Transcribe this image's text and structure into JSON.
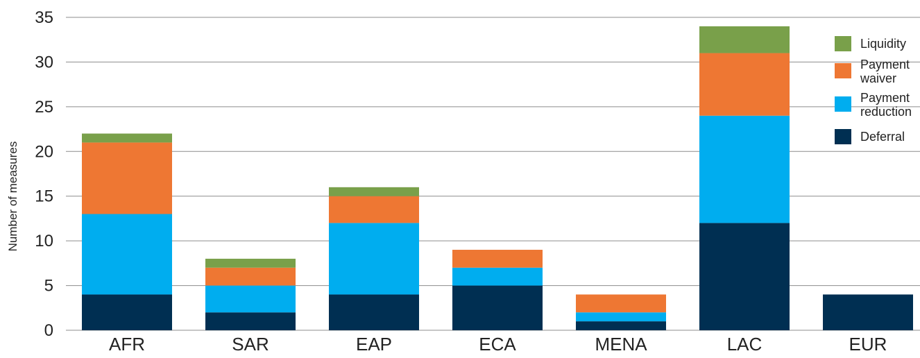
{
  "chart_data": {
    "type": "bar",
    "stacked": true,
    "categories": [
      "AFR",
      "SAR",
      "EAP",
      "ECA",
      "MENA",
      "LAC",
      "EUR"
    ],
    "series": [
      {
        "name": "Deferral",
        "values": [
          4,
          2,
          4,
          5,
          1,
          12,
          4
        ],
        "color": "#002f52"
      },
      {
        "name": "Payment reduction",
        "values": [
          9,
          3,
          8,
          2,
          1,
          12,
          0
        ],
        "color": "#00adef"
      },
      {
        "name": "Payment waiver",
        "values": [
          8,
          2,
          3,
          2,
          2,
          7,
          0
        ],
        "color": "#ee7733"
      },
      {
        "name": "Liquidity",
        "values": [
          1,
          1,
          1,
          0,
          0,
          3,
          0
        ],
        "color": "#79a04a"
      }
    ],
    "legend_order": [
      "Liquidity",
      "Payment waiver",
      "Payment reduction",
      "Deferral"
    ],
    "legend_labels": {
      "Liquidity": [
        "Liquidity"
      ],
      "Payment waiver": [
        "Payment",
        "waiver"
      ],
      "Payment reduction": [
        "Payment",
        "reduction"
      ],
      "Deferral": [
        "Deferral"
      ]
    },
    "ylabel": "Number of measures",
    "xlabel": "",
    "title": "",
    "ylim": [
      0,
      35
    ],
    "yticks": [
      0,
      5,
      10,
      15,
      20,
      25,
      30,
      35
    ],
    "grid": true,
    "legend_position": "right"
  }
}
